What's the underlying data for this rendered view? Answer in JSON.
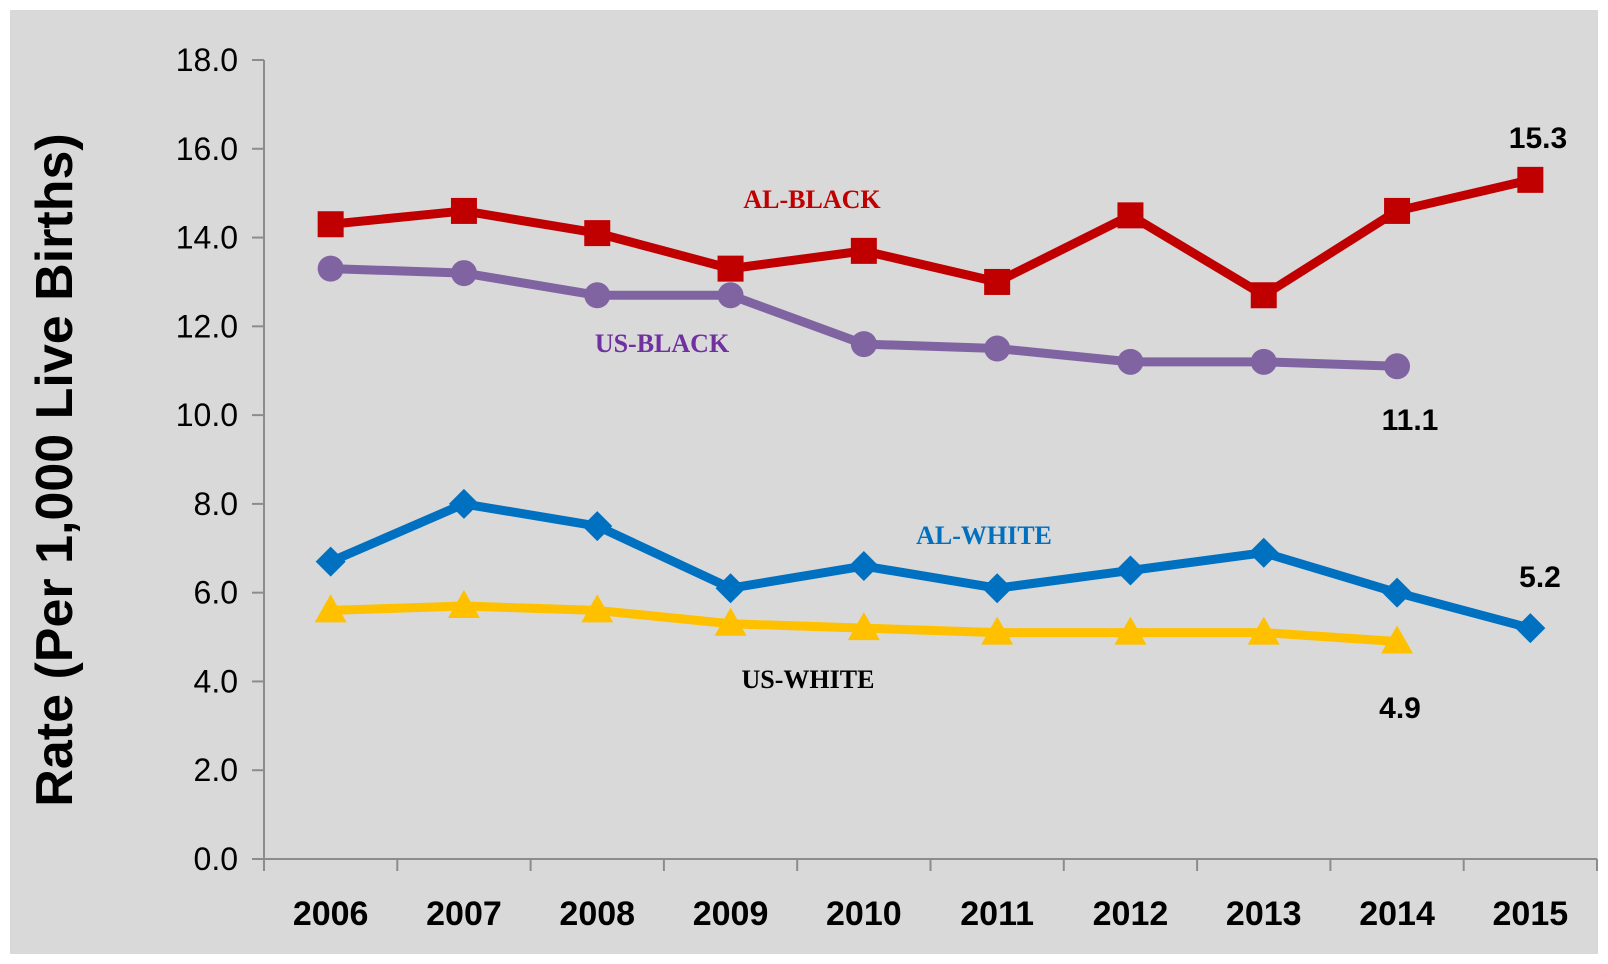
{
  "chart_data": {
    "type": "line",
    "ylabel": "Rate (Per 1,000 Live Births)",
    "xlabel": "",
    "ylim": [
      0,
      18
    ],
    "y_ticks": [
      "0.0",
      "2.0",
      "4.0",
      "6.0",
      "8.0",
      "10.0",
      "12.0",
      "14.0",
      "16.0",
      "18.0"
    ],
    "categories": [
      "2006",
      "2007",
      "2008",
      "2009",
      "2010",
      "2011",
      "2012",
      "2013",
      "2014",
      "2015"
    ],
    "grid": false,
    "legend": "none (inline series labels)",
    "background_color": "#d9d9d9",
    "series": [
      {
        "name": "AL-BLACK",
        "color": "#c00000",
        "marker": "square",
        "values": [
          14.3,
          14.6,
          14.1,
          13.3,
          13.7,
          13.0,
          14.5,
          12.7,
          14.6,
          15.3
        ]
      },
      {
        "name": "US-BLACK",
        "color": "#8064a2",
        "marker": "circle",
        "values": [
          13.3,
          13.2,
          12.7,
          12.7,
          11.6,
          11.5,
          11.2,
          11.2,
          11.1,
          null
        ]
      },
      {
        "name": "AL-WHITE",
        "color": "#0070c0",
        "marker": "diamond",
        "values": [
          6.7,
          8.0,
          7.5,
          6.1,
          6.6,
          6.1,
          6.5,
          6.9,
          6.0,
          5.2
        ]
      },
      {
        "name": "US-WHITE",
        "color": "#ffc000",
        "label_color": "#000000",
        "marker": "triangle",
        "values": [
          5.6,
          5.7,
          5.6,
          5.3,
          5.2,
          5.1,
          5.1,
          5.1,
          4.9,
          null
        ]
      }
    ],
    "annotations": [
      "15.3",
      "11.1",
      "5.2",
      "4.9"
    ]
  }
}
